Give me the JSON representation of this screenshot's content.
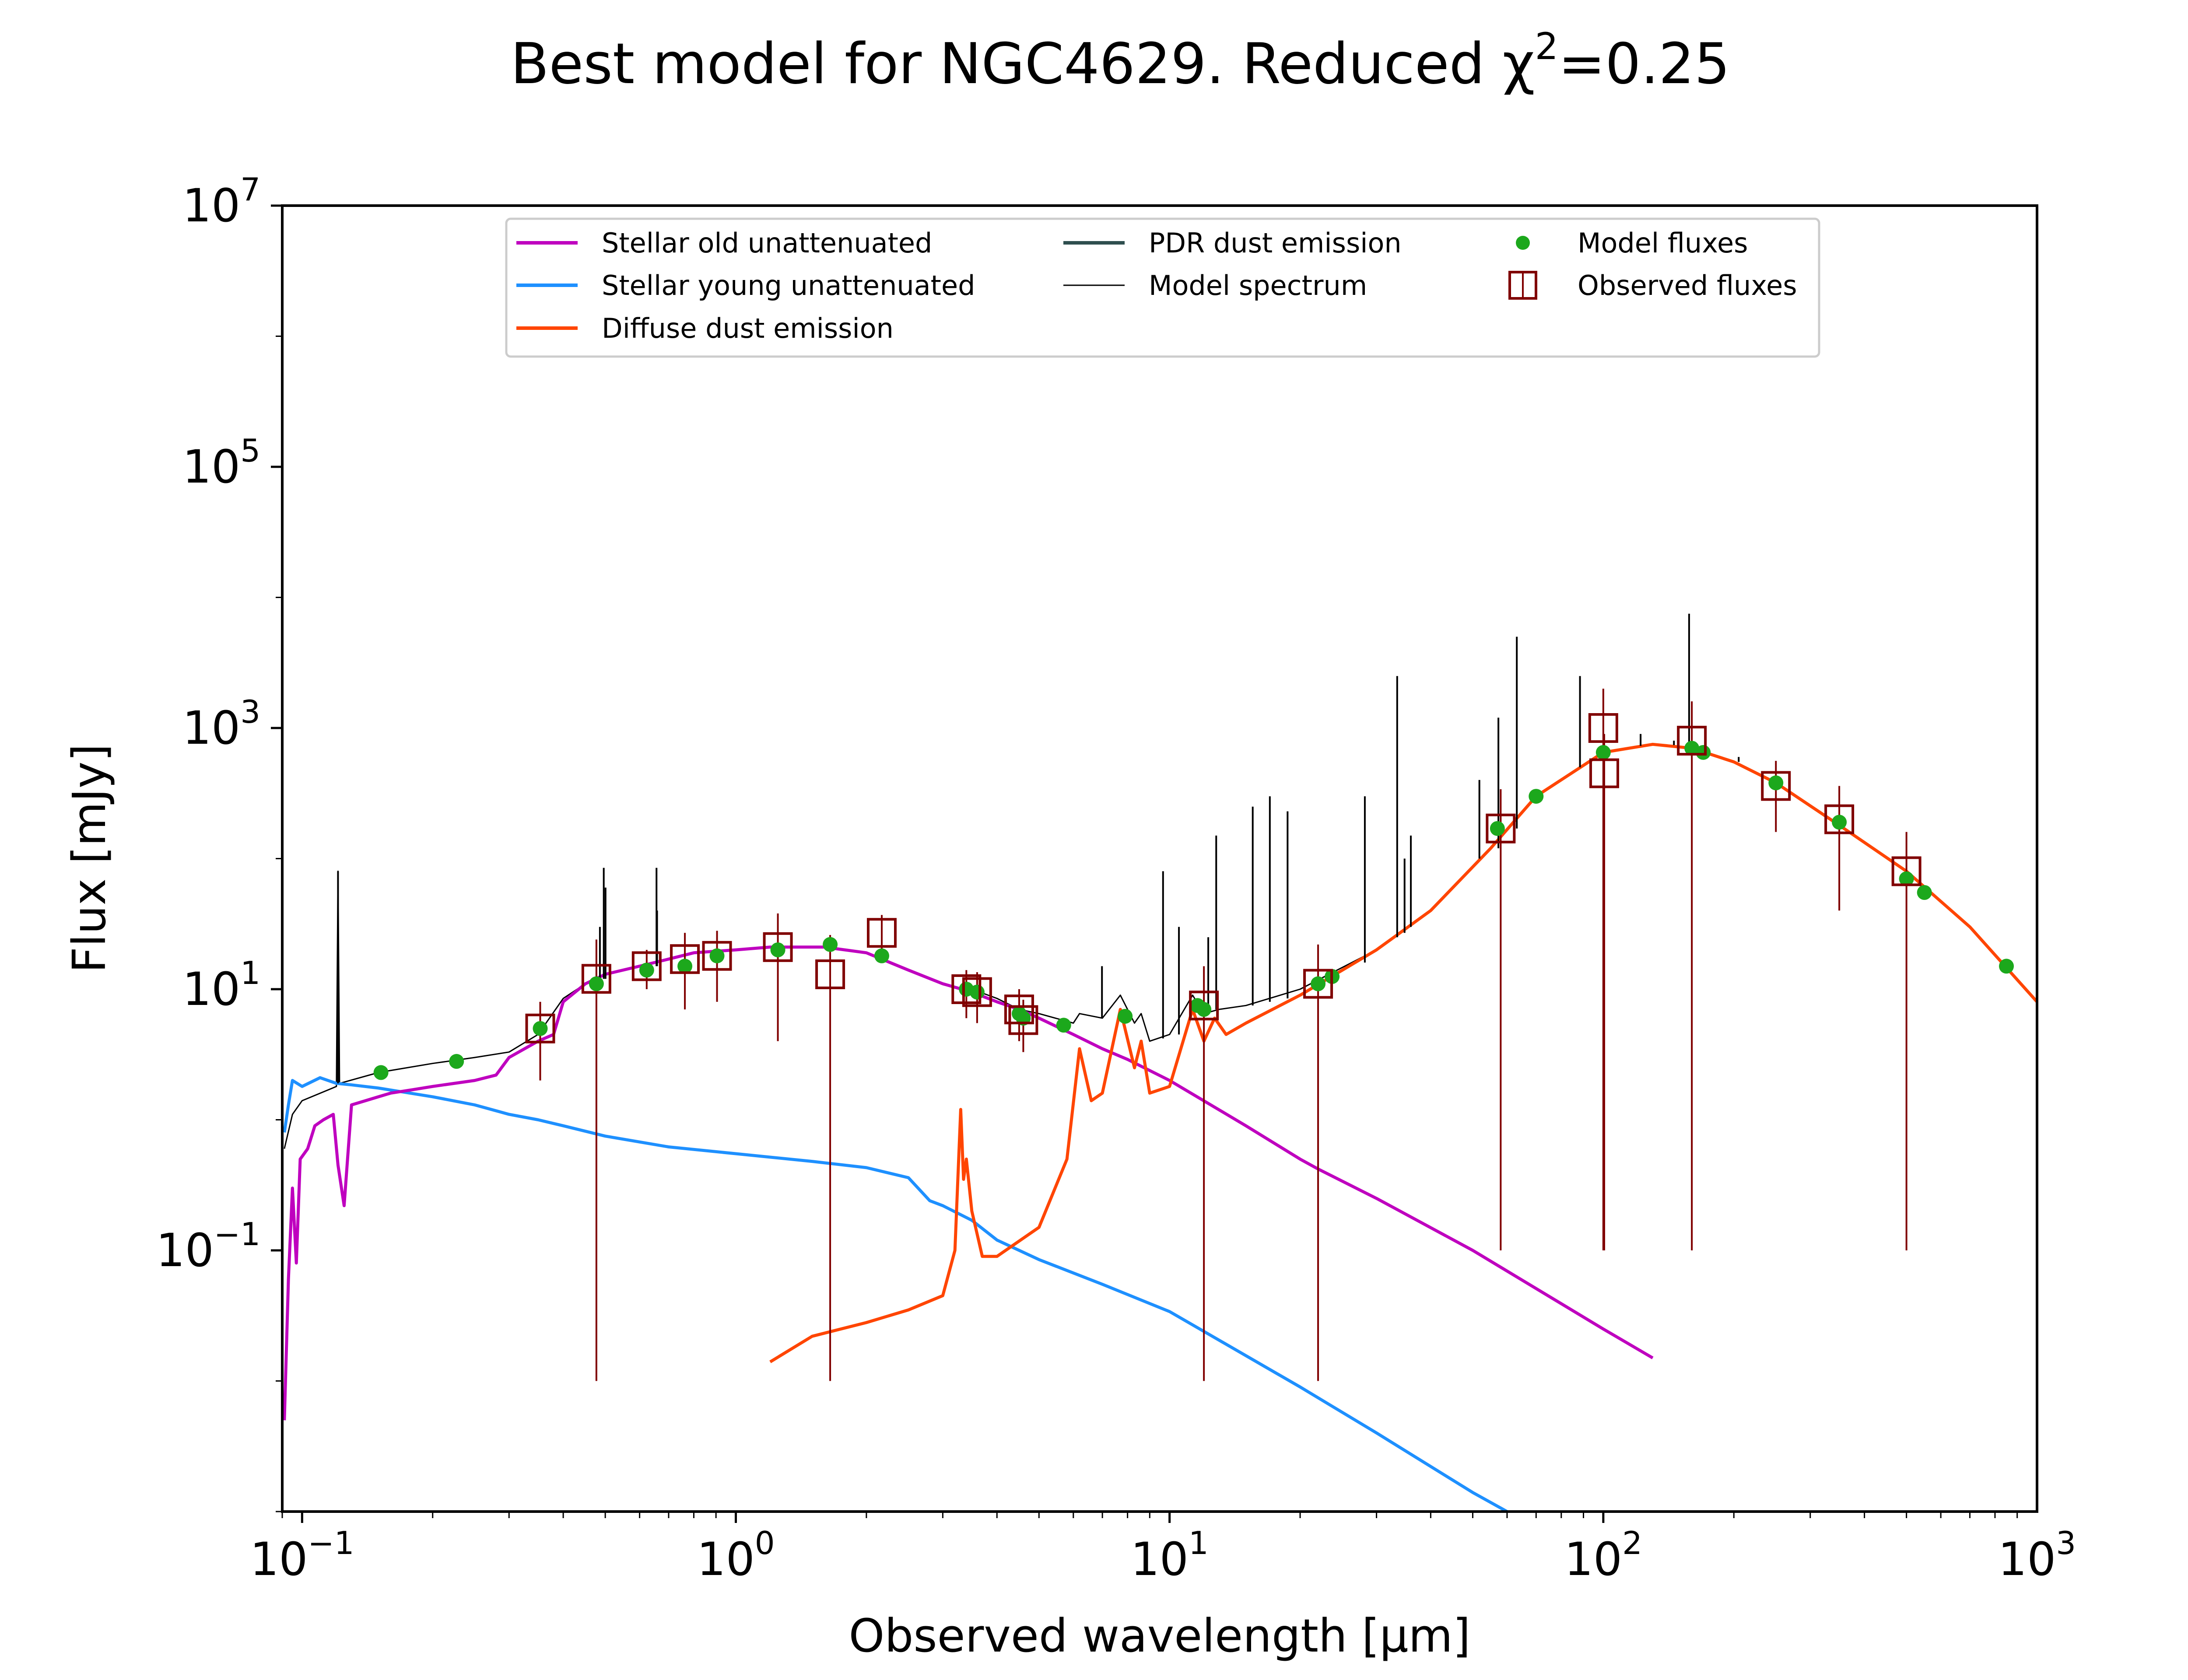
{
  "chart_data": {
    "type": "line",
    "title": "Best model for NGC4629. Reduced χ²=0.25",
    "title_parts": {
      "main": "Best model for NGC4629. Reduced χ",
      "sup": "2",
      "tail": "=0.25"
    },
    "xlabel": "Observed wavelength [μm]",
    "ylabel": "Flux [mJy]",
    "xscale": "log",
    "yscale": "log",
    "xlim": [
      0.09,
      1000
    ],
    "ylim": [
      0.001,
      10000000
    ],
    "x_ticks": [
      {
        "value": 0.1,
        "base": "10",
        "exp": "−1"
      },
      {
        "value": 1,
        "base": "10",
        "exp": "0"
      },
      {
        "value": 10,
        "base": "10",
        "exp": "1"
      },
      {
        "value": 100,
        "base": "10",
        "exp": "2"
      },
      {
        "value": 1000,
        "base": "10",
        "exp": "3"
      }
    ],
    "y_ticks": [
      {
        "value": 0.1,
        "base": "10",
        "exp": "−1"
      },
      {
        "value": 10,
        "base": "10",
        "exp": "1"
      },
      {
        "value": 1000,
        "base": "10",
        "exp": "3"
      },
      {
        "value": 100000,
        "base": "10",
        "exp": "5"
      },
      {
        "value": 10000000,
        "base": "10",
        "exp": "7"
      }
    ],
    "grid": false,
    "legend_position": "top-center",
    "legend": [
      {
        "label": "Stellar old unattenuated",
        "color": "#bf00bf",
        "kind": "line"
      },
      {
        "label": "Stellar young unattenuated",
        "color": "#1e90ff",
        "kind": "line"
      },
      {
        "label": "Diffuse dust emission",
        "color": "#ff4500",
        "kind": "line"
      },
      {
        "label": "PDR dust emission",
        "color": "#2f4f4f",
        "kind": "line"
      },
      {
        "label": "Model spectrum",
        "color": "#000000",
        "kind": "thinline"
      },
      {
        "label": "Model fluxes",
        "color": "#1ca81c",
        "kind": "dot"
      },
      {
        "label": "Observed fluxes",
        "color": "#800000",
        "kind": "square"
      }
    ],
    "series": [
      {
        "name": "Stellar old unattenuated",
        "color": "#bf00bf",
        "points": [
          [
            0.091,
            0.005
          ],
          [
            0.093,
            0.06
          ],
          [
            0.095,
            0.3
          ],
          [
            0.097,
            0.08
          ],
          [
            0.099,
            0.5
          ],
          [
            0.103,
            0.6
          ],
          [
            0.107,
            0.9
          ],
          [
            0.112,
            1.0
          ],
          [
            0.118,
            1.1
          ],
          [
            0.121,
            0.45
          ],
          [
            0.125,
            0.22
          ],
          [
            0.13,
            1.3
          ],
          [
            0.14,
            1.4
          ],
          [
            0.15,
            1.5
          ],
          [
            0.16,
            1.6
          ],
          [
            0.18,
            1.7
          ],
          [
            0.2,
            1.8
          ],
          [
            0.25,
            2.0
          ],
          [
            0.28,
            2.2
          ],
          [
            0.3,
            3.0
          ],
          [
            0.35,
            4.0
          ],
          [
            0.38,
            4.5
          ],
          [
            0.4,
            8.0
          ],
          [
            0.45,
            11
          ],
          [
            0.5,
            13
          ],
          [
            0.6,
            15
          ],
          [
            0.7,
            17
          ],
          [
            0.8,
            19
          ],
          [
            1.0,
            20
          ],
          [
            1.2,
            21
          ],
          [
            1.6,
            21
          ],
          [
            2.0,
            19
          ],
          [
            2.5,
            14
          ],
          [
            3.0,
            11
          ],
          [
            3.5,
            9.5
          ],
          [
            4.0,
            8.0
          ],
          [
            4.5,
            7.0
          ],
          [
            5.0,
            6.0
          ],
          [
            6.0,
            4.5
          ],
          [
            7.0,
            3.5
          ],
          [
            8.0,
            2.9
          ],
          [
            10.0,
            2.0
          ],
          [
            15.0,
            0.9
          ],
          [
            20.0,
            0.5
          ],
          [
            22.0,
            0.42
          ],
          [
            30.0,
            0.25
          ],
          [
            50.0,
            0.1
          ],
          [
            100.0,
            0.025
          ],
          [
            130.0,
            0.015
          ]
        ]
      },
      {
        "name": "Stellar young unattenuated",
        "color": "#1e90ff",
        "points": [
          [
            0.091,
            0.8
          ],
          [
            0.093,
            1.3
          ],
          [
            0.095,
            2.0
          ],
          [
            0.1,
            1.8
          ],
          [
            0.11,
            2.1
          ],
          [
            0.12,
            1.9
          ],
          [
            0.13,
            1.85
          ],
          [
            0.15,
            1.75
          ],
          [
            0.2,
            1.5
          ],
          [
            0.25,
            1.3
          ],
          [
            0.3,
            1.1
          ],
          [
            0.35,
            1.0
          ],
          [
            0.4,
            0.9
          ],
          [
            0.5,
            0.75
          ],
          [
            0.7,
            0.62
          ],
          [
            1.0,
            0.55
          ],
          [
            1.5,
            0.48
          ],
          [
            2.0,
            0.43
          ],
          [
            2.5,
            0.36
          ],
          [
            2.8,
            0.24
          ],
          [
            3.0,
            0.22
          ],
          [
            3.5,
            0.17
          ],
          [
            4.0,
            0.12
          ],
          [
            5.0,
            0.085
          ],
          [
            7.0,
            0.055
          ],
          [
            10.0,
            0.034
          ],
          [
            20.0,
            0.009
          ],
          [
            30.0,
            0.004
          ],
          [
            50.0,
            0.0014
          ],
          [
            60.0,
            0.001
          ]
        ]
      },
      {
        "name": "Diffuse dust emission",
        "color": "#ff4500",
        "points": [
          [
            1.2,
            0.014
          ],
          [
            1.5,
            0.022
          ],
          [
            2.0,
            0.028
          ],
          [
            2.5,
            0.035
          ],
          [
            3.0,
            0.045
          ],
          [
            3.2,
            0.1
          ],
          [
            3.3,
            1.2
          ],
          [
            3.35,
            0.35
          ],
          [
            3.4,
            0.5
          ],
          [
            3.5,
            0.2
          ],
          [
            3.7,
            0.09
          ],
          [
            4.0,
            0.09
          ],
          [
            5.0,
            0.15
          ],
          [
            5.8,
            0.5
          ],
          [
            6.2,
            3.5
          ],
          [
            6.6,
            1.4
          ],
          [
            7.0,
            1.6
          ],
          [
            7.7,
            7.0
          ],
          [
            8.3,
            2.5
          ],
          [
            8.6,
            4.0
          ],
          [
            9.0,
            1.6
          ],
          [
            10.0,
            1.8
          ],
          [
            11.3,
            7.0
          ],
          [
            12.0,
            4.0
          ],
          [
            12.7,
            6.0
          ],
          [
            13.5,
            4.5
          ],
          [
            15.0,
            5.5
          ],
          [
            20.0,
            9.0
          ],
          [
            30.0,
            20
          ],
          [
            40.0,
            40
          ],
          [
            55.0,
            120
          ],
          [
            70.0,
            300
          ],
          [
            100.0,
            650
          ],
          [
            130.0,
            750
          ],
          [
            160.0,
            700
          ],
          [
            200.0,
            550
          ],
          [
            250.0,
            380
          ],
          [
            350.0,
            180
          ],
          [
            500.0,
            80
          ],
          [
            700.0,
            30
          ],
          [
            1000.0,
            8
          ]
        ]
      },
      {
        "name": "Model spectrum",
        "color": "#000000",
        "points": [
          [
            0.091,
            0.6
          ],
          [
            0.095,
            1.1
          ],
          [
            0.1,
            1.4
          ],
          [
            0.12,
            1.8
          ],
          [
            0.121,
            80
          ],
          [
            0.122,
            1.9
          ],
          [
            0.15,
            2.3
          ],
          [
            0.2,
            2.7
          ],
          [
            0.25,
            3.0
          ],
          [
            0.3,
            3.3
          ],
          [
            0.35,
            4.5
          ],
          [
            0.4,
            8.5
          ],
          [
            0.45,
            11
          ],
          [
            0.5,
            13
          ],
          [
            0.6,
            15
          ],
          [
            0.7,
            17
          ],
          [
            0.8,
            19
          ],
          [
            1.0,
            20
          ],
          [
            1.2,
            21
          ],
          [
            1.6,
            21
          ],
          [
            2.0,
            19
          ],
          [
            2.5,
            14
          ],
          [
            3.0,
            11
          ],
          [
            3.3,
            10
          ],
          [
            3.5,
            10
          ],
          [
            4.0,
            8.5
          ],
          [
            4.5,
            7
          ],
          [
            5.0,
            6.5
          ],
          [
            6.0,
            5.5
          ],
          [
            6.2,
            6.5
          ],
          [
            7.0,
            6.0
          ],
          [
            7.7,
            9.0
          ],
          [
            8.3,
            5.5
          ],
          [
            8.6,
            6.5
          ],
          [
            9.0,
            4.0
          ],
          [
            10.0,
            4.5
          ],
          [
            11.3,
            9.0
          ],
          [
            12.0,
            6.5
          ],
          [
            13.0,
            7.0
          ],
          [
            15.0,
            7.5
          ],
          [
            20.0,
            10
          ],
          [
            30.0,
            20
          ],
          [
            40.0,
            40
          ],
          [
            55.0,
            120
          ],
          [
            70.0,
            300
          ],
          [
            100.0,
            650
          ],
          [
            130.0,
            760
          ],
          [
            160.0,
            700
          ],
          [
            200.0,
            550
          ],
          [
            250.0,
            380
          ],
          [
            350.0,
            180
          ],
          [
            500.0,
            80
          ],
          [
            700.0,
            30
          ],
          [
            1000.0,
            8
          ]
        ]
      }
    ],
    "emission_lines": [
      {
        "x": 0.121,
        "peak": 80,
        "base": 1.9
      },
      {
        "x": 0.486,
        "peak": 30,
        "base": 12
      },
      {
        "x": 0.496,
        "peak": 85,
        "base": 12
      },
      {
        "x": 0.5007,
        "peak": 60,
        "base": 12
      },
      {
        "x": 0.6563,
        "peak": 85,
        "base": 15
      },
      {
        "x": 0.6583,
        "peak": 40,
        "base": 15
      },
      {
        "x": 6.985,
        "peak": 15,
        "base": 6
      },
      {
        "x": 9.66,
        "peak": 80,
        "base": 4.2
      },
      {
        "x": 10.51,
        "peak": 30,
        "base": 4.5
      },
      {
        "x": 12.28,
        "peak": 25,
        "base": 7
      },
      {
        "x": 12.81,
        "peak": 150,
        "base": 7
      },
      {
        "x": 15.55,
        "peak": 250,
        "base": 7.5
      },
      {
        "x": 17.03,
        "peak": 300,
        "base": 8
      },
      {
        "x": 18.71,
        "peak": 230,
        "base": 8.5
      },
      {
        "x": 28.2,
        "peak": 300,
        "base": 16
      },
      {
        "x": 33.48,
        "peak": 2500,
        "base": 25
      },
      {
        "x": 34.82,
        "peak": 100,
        "base": 27
      },
      {
        "x": 36.0,
        "peak": 150,
        "base": 30
      },
      {
        "x": 51.8,
        "peak": 400,
        "base": 100
      },
      {
        "x": 57.3,
        "peak": 1200,
        "base": 120
      },
      {
        "x": 63.18,
        "peak": 5000,
        "base": 170
      },
      {
        "x": 88.36,
        "peak": 2500,
        "base": 500
      },
      {
        "x": 121.9,
        "peak": 900,
        "base": 730
      },
      {
        "x": 145.5,
        "peak": 800,
        "base": 740
      },
      {
        "x": 157.7,
        "peak": 7500,
        "base": 720
      },
      {
        "x": 205.2,
        "peak": 600,
        "base": 550
      }
    ],
    "model_fluxes": [
      [
        0.152,
        2.3
      ],
      [
        0.227,
        2.8
      ],
      [
        0.354,
        5.0
      ],
      [
        0.477,
        11
      ],
      [
        0.623,
        14
      ],
      [
        0.763,
        15
      ],
      [
        0.905,
        18
      ],
      [
        1.25,
        20
      ],
      [
        1.65,
        22
      ],
      [
        2.17,
        18
      ],
      [
        3.4,
        10
      ],
      [
        3.6,
        9.5
      ],
      [
        4.5,
        6.5
      ],
      [
        4.6,
        6.0
      ],
      [
        5.7,
        5.3
      ],
      [
        7.9,
        6.2
      ],
      [
        11.6,
        7.5
      ],
      [
        12.0,
        7.0
      ],
      [
        22.0,
        11
      ],
      [
        23.7,
        12.5
      ],
      [
        57.0,
        170
      ],
      [
        70.0,
        300
      ],
      [
        100.0,
        650
      ],
      [
        160.0,
        700
      ],
      [
        170.0,
        650
      ],
      [
        250.0,
        380
      ],
      [
        350.0,
        190
      ],
      [
        500.0,
        70
      ],
      [
        550.0,
        55
      ],
      [
        850.0,
        15
      ]
    ],
    "observed_fluxes": [
      {
        "x": 0.354,
        "y": 5.0,
        "err": 3
      },
      {
        "x": 0.477,
        "y": 12,
        "err": 11.99
      },
      {
        "x": 0.623,
        "y": 15,
        "err": 5
      },
      {
        "x": 0.763,
        "y": 17,
        "err": 10
      },
      {
        "x": 0.905,
        "y": 18,
        "err": 10
      },
      {
        "x": 1.25,
        "y": 21,
        "err": 17
      },
      {
        "x": 1.65,
        "y": 13,
        "err": 12.99
      },
      {
        "x": 2.17,
        "y": 27,
        "err": 10
      },
      {
        "x": 3.4,
        "y": 10,
        "err": 4
      },
      {
        "x": 3.6,
        "y": 9.5,
        "err": 4
      },
      {
        "x": 4.5,
        "y": 7.0,
        "err": 3
      },
      {
        "x": 4.6,
        "y": 5.8,
        "err": 2.5
      },
      {
        "x": 12.0,
        "y": 7.5,
        "err": 7.49
      },
      {
        "x": 22.0,
        "y": 11,
        "err": 10.99
      },
      {
        "x": 58.0,
        "y": 170,
        "err": 169.9
      },
      {
        "x": 100.0,
        "y": 1000,
        "err": 999.9
      },
      {
        "x": 100.5,
        "y": 450,
        "err": 449.9
      },
      {
        "x": 160.0,
        "y": 800,
        "err": 799.9
      },
      {
        "x": 250.0,
        "y": 360,
        "err": 200
      },
      {
        "x": 350.0,
        "y": 200,
        "err": 160
      },
      {
        "x": 500.0,
        "y": 80,
        "err": 79.9
      }
    ],
    "colors": {
      "model_fluxes": "#1ca81c",
      "observed_fluxes": "#800000",
      "axes": "#000000"
    }
  }
}
